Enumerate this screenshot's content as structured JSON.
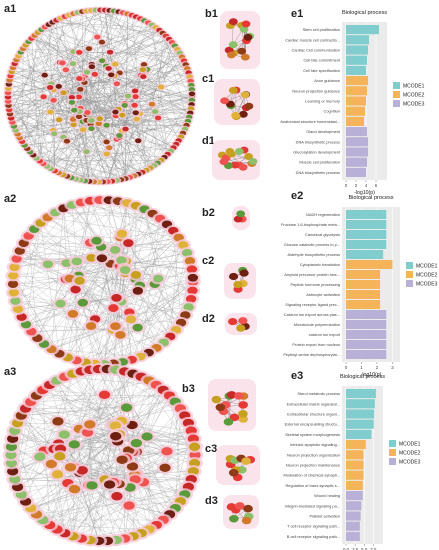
{
  "panels": {
    "a1": "a1",
    "a2": "a2",
    "a3": "a3",
    "b1": "b1",
    "b2": "b2",
    "b3": "b3",
    "c1": "c1",
    "c2": "c2",
    "c3": "c3",
    "d1": "d1",
    "d2": "d2",
    "d3": "d3",
    "e1": "e1",
    "e2": "e2",
    "e3": "e3"
  },
  "module_colors": {
    "MCODE1": "#7fcdcd",
    "MCODE2": "#f5b35a",
    "MCODE3": "#b8b0d6"
  },
  "chart_data": [
    {
      "id": "e1",
      "type": "bar",
      "orientation": "horizontal",
      "title": "Biological process",
      "xlabel": "-log10(p)",
      "ylabel": "",
      "xlim": [
        0,
        7
      ],
      "xticks": [
        0,
        2,
        4,
        6
      ],
      "legend": [
        "MCODE1",
        "MCODE2",
        "MCODE3"
      ],
      "legend_position": "right",
      "categories": [
        "Stem cell proliferation",
        "Cardiac muscle cell contractio...",
        "Cardiac Cell communication",
        "Cell fate commitment",
        "Cell fate specification",
        "Axon guidance",
        "Neuron projection guidance",
        "Learning or memory",
        "Cognition",
        "Anatomical structure homeostasi...",
        "Gland development",
        "DNA biosynthetic process",
        "Glucosylation development",
        "Muscle cell proliferation",
        "DNA biosynthetic process"
      ],
      "groups": [
        "MCODE1",
        "MCODE1",
        "MCODE1",
        "MCODE1",
        "MCODE1",
        "MCODE2",
        "MCODE2",
        "MCODE2",
        "MCODE2",
        "MCODE2",
        "MCODE3",
        "MCODE3",
        "MCODE3",
        "MCODE3",
        "MCODE3"
      ],
      "values": [
        6.6,
        4.6,
        4.4,
        4.2,
        4.0,
        4.4,
        4.2,
        4.0,
        3.8,
        3.6,
        4.2,
        4.4,
        4.4,
        4.2,
        4.0
      ]
    },
    {
      "id": "e2",
      "type": "bar",
      "orientation": "horizontal",
      "title": "Biological process",
      "xlabel": "-log10(p)",
      "ylabel": "",
      "xlim": [
        0,
        3.1
      ],
      "xticks": [
        0,
        1,
        2,
        3
      ],
      "legend": [
        "MCODE1",
        "MCODE2",
        "MCODE3"
      ],
      "legend_position": "right",
      "categories": [
        "NADH regeneration",
        "Fructose 1,6-bisphosphate meta...",
        "Canonical glycolysis",
        "Glucose catabolic process to p...",
        "Aldehyde biosynthetic process",
        "Cytoplasmic translation",
        "Amyloid precursor protein bios...",
        "Peptide hormone processing",
        "Astrocyte activation",
        "Signaling receptor ligand prec...",
        "Calcium ion export across plas...",
        "Microtubule polymerization",
        "calcium ion export",
        "Protein export from nucleus",
        "Peptidyl-serine dephosphorylat..."
      ],
      "groups": [
        "MCODE1",
        "MCODE1",
        "MCODE1",
        "MCODE1",
        "MCODE1",
        "MCODE2",
        "MCODE2",
        "MCODE2",
        "MCODE2",
        "MCODE2",
        "MCODE3",
        "MCODE3",
        "MCODE3",
        "MCODE3",
        "MCODE3"
      ],
      "values": [
        2.6,
        2.6,
        2.6,
        2.6,
        2.4,
        3.0,
        2.2,
        2.2,
        2.2,
        2.2,
        2.6,
        2.6,
        2.6,
        2.6,
        2.6
      ]
    },
    {
      "id": "e3",
      "type": "bar",
      "orientation": "horizontal",
      "title": "Biological process",
      "xlabel": "-log10(p)",
      "ylabel": "",
      "xlim": [
        0,
        8.5
      ],
      "xticks": [
        0,
        2.5,
        5,
        7.5
      ],
      "xticklabels": [
        "0.0",
        "2.5",
        "5.0",
        "7.5"
      ],
      "legend": [
        "MCODE1",
        "MCODE2",
        "MCODE3"
      ],
      "legend_position": "right",
      "categories": [
        "Sterol metabolic process",
        "Extracellular matrix organizat...",
        "Extracellular structure organi...",
        "External encapsulating structu...",
        "Skeletal system morphogenesis",
        "Intrinsic apoptotic signaling...",
        "Neuron projection organization",
        "Neuron projection maintenance",
        "Modulation of chemical synapti...",
        "Regulation of trans-synaptic s...",
        "Wound healing",
        "Integrin-mediated signaling pa...",
        "Platelet activation",
        "T cell receptor signaling path...",
        "B cell receptor signaling path..."
      ],
      "groups": [
        "MCODE1",
        "MCODE1",
        "MCODE1",
        "MCODE1",
        "MCODE1",
        "MCODE2",
        "MCODE2",
        "MCODE2",
        "MCODE2",
        "MCODE2",
        "MCODE3",
        "MCODE3",
        "MCODE3",
        "MCODE3",
        "MCODE3"
      ],
      "values": [
        8.2,
        7.9,
        7.7,
        7.6,
        7.0,
        5.4,
        4.8,
        4.8,
        4.8,
        4.6,
        4.6,
        4.2,
        4.0,
        3.8,
        3.8
      ]
    }
  ]
}
